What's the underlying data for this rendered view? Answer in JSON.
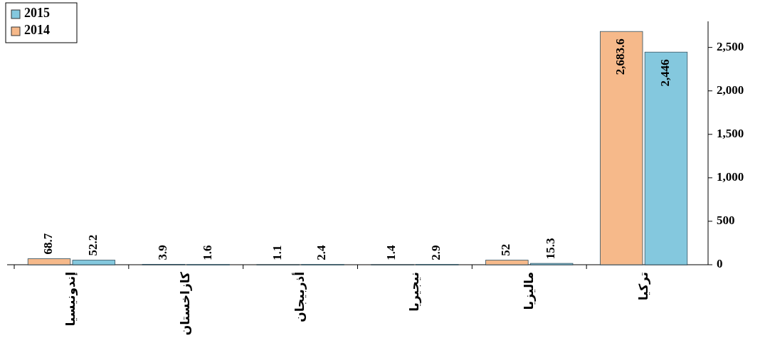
{
  "chart_data": {
    "type": "bar",
    "categories": [
      "إندونيسيا",
      "كازاخستان",
      "أذربيجان",
      "نيجيريا",
      "ماليزيا",
      "تركيا"
    ],
    "series": [
      {
        "name": "2014",
        "color": "#f6b98a",
        "values": [
          68.7,
          3.9,
          1.1,
          1.4,
          52,
          2683.6
        ],
        "value_labels": [
          "68.7",
          "3.9",
          "1.1",
          "1.4",
          "52",
          "2,683.6"
        ]
      },
      {
        "name": "2015",
        "color": "#84c8de",
        "values": [
          52.2,
          1.6,
          2.4,
          2.9,
          15.3,
          2446
        ],
        "value_labels": [
          "52.2",
          "1.6",
          "2.4",
          "2.9",
          "15.3",
          "2,446"
        ]
      }
    ],
    "ylim": [
      0,
      2800
    ],
    "yticks": [
      {
        "value": 0,
        "label": "0"
      },
      {
        "value": 500,
        "label": "500"
      },
      {
        "value": 1000,
        "label": "1,000"
      },
      {
        "value": 1500,
        "label": "1,500"
      },
      {
        "value": 2000,
        "label": "2,000"
      },
      {
        "value": 2500,
        "label": "2,500"
      }
    ],
    "grid": false,
    "legend": "top left"
  }
}
